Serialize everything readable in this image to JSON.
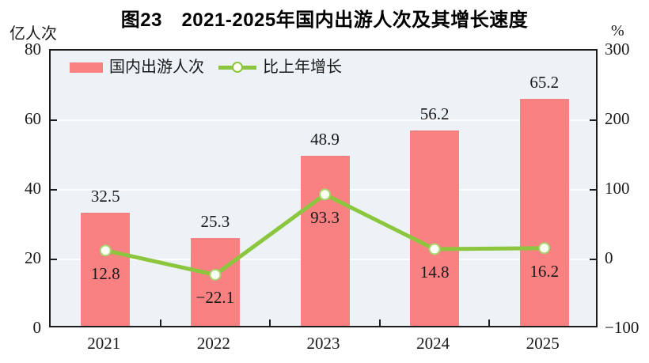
{
  "title": "图23　2021-2025年国内出游人次及其增长速度",
  "left_axis": {
    "unit": "亿人次",
    "ticks": [
      80,
      60,
      40,
      20,
      0
    ],
    "min": 0,
    "max": 80
  },
  "right_axis": {
    "unit": "%",
    "ticks": [
      300,
      200,
      100,
      0,
      -100
    ],
    "min": -100,
    "max": 300
  },
  "legend": {
    "bar_label": "国内出游人次",
    "line_label": "比上年增长"
  },
  "chart_data": {
    "type": "bar",
    "title": "图23　2021-2025年国内出游人次及其增长速度",
    "categories": [
      "2021",
      "2022",
      "2023",
      "2024",
      "2025"
    ],
    "series": [
      {
        "name": "国内出游人次",
        "type": "bar",
        "axis": "left",
        "unit": "亿人次",
        "values": [
          32.5,
          25.3,
          48.9,
          56.2,
          65.2
        ],
        "color": "#f98181"
      },
      {
        "name": "比上年增长",
        "type": "line",
        "axis": "right",
        "unit": "%",
        "values": [
          12.8,
          -22.1,
          93.3,
          14.8,
          16.2
        ],
        "color": "#8cc63f"
      }
    ],
    "left_ylim": [
      0,
      80
    ],
    "right_ylim": [
      -100,
      300
    ],
    "grid": true,
    "gridline_values_left_axis": [
      60,
      40,
      20
    ],
    "legend_position": "top-left"
  },
  "colors": {
    "bar": "#f98181",
    "line": "#8cc63f",
    "marker_fill": "#fdfef2",
    "marker_stroke": "#a6d470",
    "plot_background": "#edf2f7",
    "gridline": "#ffffff",
    "axis": "#1c1c1c",
    "text": "#1a1a1a"
  }
}
